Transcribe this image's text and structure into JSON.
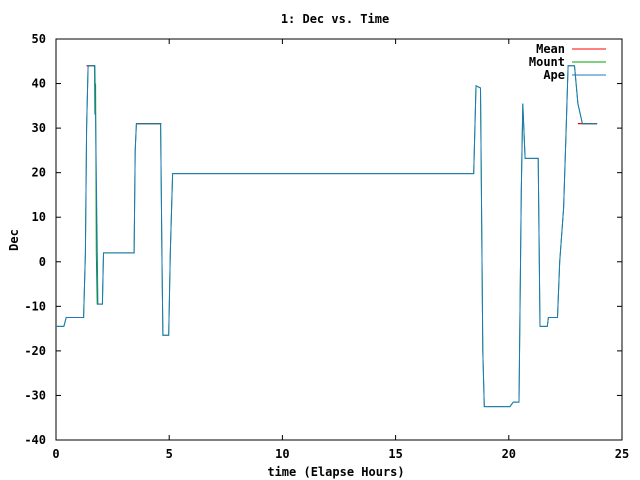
{
  "chart_data": {
    "type": "line",
    "title": "1: Dec vs. Time",
    "xlabel": "time (Elapse Hours)",
    "ylabel": "Dec",
    "xlim": [
      0,
      25
    ],
    "ylim": [
      -40,
      50
    ],
    "x_ticks": [
      "0",
      "5",
      "10",
      "15",
      "20",
      "25"
    ],
    "y_ticks": [
      "-40",
      "-30",
      "-20",
      "-10",
      "0",
      "10",
      "20",
      "30",
      "40",
      "50"
    ],
    "grid": false,
    "legend_position": "top-right",
    "series": [
      {
        "name": "Mean",
        "color": "#ff0000",
        "points": [
          [
            1.35,
            44.0
          ],
          [
            1.72,
            44.0
          ],
          [
            3.55,
            31.0
          ],
          [
            4.65,
            31.0
          ],
          [
            23.05,
            31.0
          ],
          [
            23.9,
            31.0
          ]
        ]
      },
      {
        "name": "Mount",
        "color": "#00a000",
        "points": [
          [
            0.0,
            -14.5
          ],
          [
            0.35,
            -14.5
          ],
          [
            0.45,
            -12.5
          ],
          [
            1.22,
            -12.5
          ],
          [
            1.3,
            2.0
          ],
          [
            1.35,
            30.0
          ],
          [
            1.42,
            44.0
          ],
          [
            1.7,
            44.0
          ],
          [
            1.72,
            33.0
          ],
          [
            1.75,
            40.0
          ],
          [
            1.78,
            2.0
          ],
          [
            1.82,
            -9.5
          ],
          [
            2.05,
            -9.5
          ],
          [
            2.1,
            2.0
          ],
          [
            3.45,
            2.0
          ],
          [
            3.5,
            25.0
          ],
          [
            3.55,
            31.0
          ],
          [
            4.62,
            31.0
          ],
          [
            4.68,
            0.0
          ],
          [
            4.72,
            -16.5
          ],
          [
            4.98,
            -16.5
          ],
          [
            5.05,
            2.0
          ],
          [
            5.15,
            19.8
          ],
          [
            18.45,
            19.8
          ],
          [
            18.55,
            39.5
          ],
          [
            18.75,
            39.0
          ],
          [
            18.85,
            -20.0
          ],
          [
            18.92,
            -32.5
          ],
          [
            20.05,
            -32.5
          ],
          [
            20.2,
            -31.5
          ],
          [
            20.45,
            -31.5
          ],
          [
            20.55,
            16.0
          ],
          [
            20.62,
            35.5
          ],
          [
            20.72,
            23.2
          ],
          [
            21.3,
            23.2
          ],
          [
            21.38,
            -14.5
          ],
          [
            21.7,
            -14.5
          ],
          [
            21.75,
            -12.5
          ],
          [
            22.15,
            -12.5
          ],
          [
            22.25,
            0.0
          ],
          [
            22.42,
            12.0
          ],
          [
            22.52,
            28.0
          ],
          [
            22.62,
            44.0
          ],
          [
            22.9,
            44.0
          ],
          [
            23.05,
            35.5
          ],
          [
            23.25,
            31.0
          ],
          [
            23.9,
            31.0
          ]
        ]
      },
      {
        "name": "Ape",
        "color": "#1f77c0",
        "points": [
          [
            0.0,
            -14.5
          ],
          [
            0.35,
            -14.5
          ],
          [
            0.45,
            -12.5
          ],
          [
            1.22,
            -12.5
          ],
          [
            1.3,
            2.0
          ],
          [
            1.35,
            30.0
          ],
          [
            1.42,
            44.0
          ],
          [
            1.72,
            44.0
          ],
          [
            1.78,
            20.0
          ],
          [
            1.85,
            -9.5
          ],
          [
            2.05,
            -9.5
          ],
          [
            2.1,
            2.0
          ],
          [
            3.45,
            2.0
          ],
          [
            3.5,
            25.0
          ],
          [
            3.55,
            31.0
          ],
          [
            4.62,
            31.0
          ],
          [
            4.68,
            0.0
          ],
          [
            4.72,
            -16.5
          ],
          [
            4.98,
            -16.5
          ],
          [
            5.05,
            2.0
          ],
          [
            5.15,
            19.8
          ],
          [
            18.45,
            19.8
          ],
          [
            18.55,
            39.5
          ],
          [
            18.75,
            39.0
          ],
          [
            18.85,
            -20.0
          ],
          [
            18.92,
            -32.5
          ],
          [
            20.05,
            -32.5
          ],
          [
            20.2,
            -31.5
          ],
          [
            20.45,
            -31.5
          ],
          [
            20.55,
            16.0
          ],
          [
            20.62,
            35.5
          ],
          [
            20.72,
            23.2
          ],
          [
            21.3,
            23.2
          ],
          [
            21.38,
            -14.5
          ],
          [
            21.7,
            -14.5
          ],
          [
            21.75,
            -12.5
          ],
          [
            22.15,
            -12.5
          ],
          [
            22.25,
            0.0
          ],
          [
            22.42,
            12.0
          ],
          [
            22.52,
            28.0
          ],
          [
            22.62,
            44.0
          ],
          [
            22.9,
            44.0
          ],
          [
            23.05,
            35.5
          ],
          [
            23.25,
            31.0
          ],
          [
            23.9,
            31.0
          ]
        ]
      }
    ]
  }
}
